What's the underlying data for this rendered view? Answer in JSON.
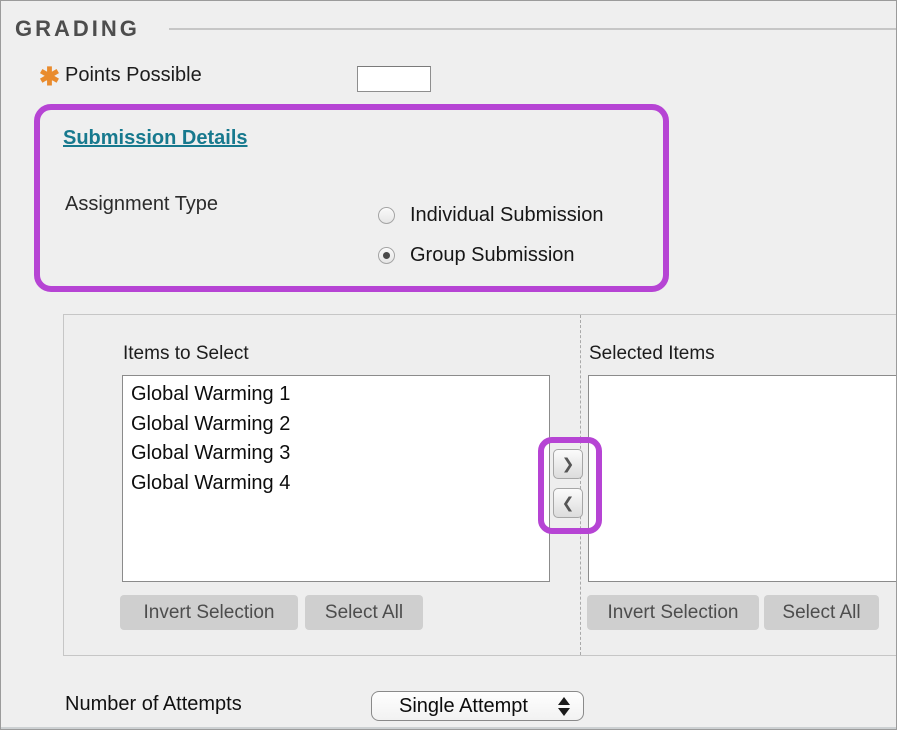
{
  "page": {
    "bg_color": "#efefef",
    "highlight_color": "#b644d4",
    "link_color": "#17798e",
    "required_color": "#e98b2d"
  },
  "grading": {
    "section_title": "GRADING",
    "points_possible": {
      "label": "Points Possible",
      "required_icon": "✱",
      "value": ""
    },
    "submission_details_link": "Submission Details",
    "assignment_type": {
      "label": "Assignment Type",
      "options": [
        {
          "label": "Individual Submission",
          "selected": false
        },
        {
          "label": "Group Submission",
          "selected": true
        }
      ]
    },
    "group_picker": {
      "items_to_select": {
        "label": "Items to Select",
        "options": [
          "Global Warming 1",
          "Global Warming 2",
          "Global Warming 3",
          "Global Warming 4"
        ],
        "invert_button": "Invert Selection",
        "select_all_button": "Select All"
      },
      "selected_items": {
        "label": "Selected Items",
        "options": [],
        "invert_button": "Invert Selection",
        "select_all_button": "Select All"
      },
      "move_right_glyph": "❯",
      "move_left_glyph": "❮"
    },
    "number_of_attempts": {
      "label": "Number of Attempts",
      "value": "Single Attempt"
    }
  }
}
